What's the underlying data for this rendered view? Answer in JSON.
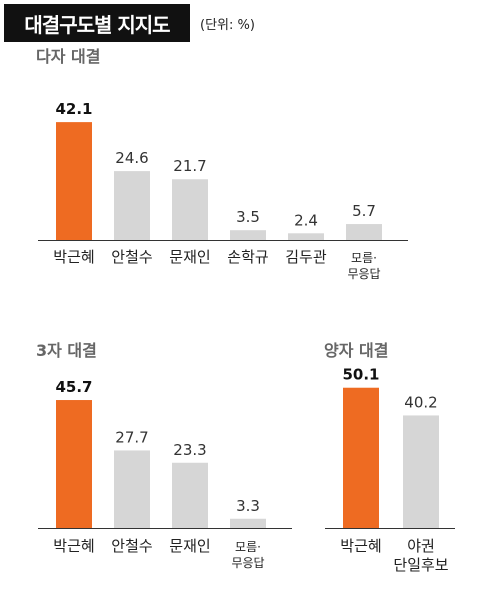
{
  "header": {
    "title": "대결구도별 지지도",
    "unit": "(단위: %)"
  },
  "colors": {
    "highlight": "#EE6B22",
    "bar": "#D6D6D6",
    "baseline": "#333333"
  },
  "chart_data": [
    {
      "type": "bar",
      "title": "다자 대결",
      "categories": [
        "박근혜",
        "안철수",
        "문재인",
        "손학규",
        "김두관",
        "모름·무응답"
      ],
      "values": [
        42.1,
        24.6,
        21.7,
        3.5,
        2.4,
        5.7
      ],
      "value_labels": [
        "42.1",
        "24.6",
        "21.7",
        "3.5",
        "2.4",
        "5.7"
      ],
      "highlight_index": 0,
      "ylim": [
        0,
        50
      ]
    },
    {
      "type": "bar",
      "title": "3자 대결",
      "categories": [
        "박근혜",
        "안철수",
        "문재인",
        "모름·무응답"
      ],
      "values": [
        45.7,
        27.7,
        23.3,
        3.3
      ],
      "value_labels": [
        "45.7",
        "27.7",
        "23.3",
        "3.3"
      ],
      "highlight_index": 0,
      "ylim": [
        0,
        50
      ]
    },
    {
      "type": "bar",
      "title": "양자 대결",
      "categories": [
        "박근혜",
        "야권 단일후보"
      ],
      "values": [
        50.1,
        40.2
      ],
      "value_labels": [
        "50.1",
        "40.2"
      ],
      "highlight_index": 0,
      "ylim": [
        0,
        50
      ]
    }
  ]
}
